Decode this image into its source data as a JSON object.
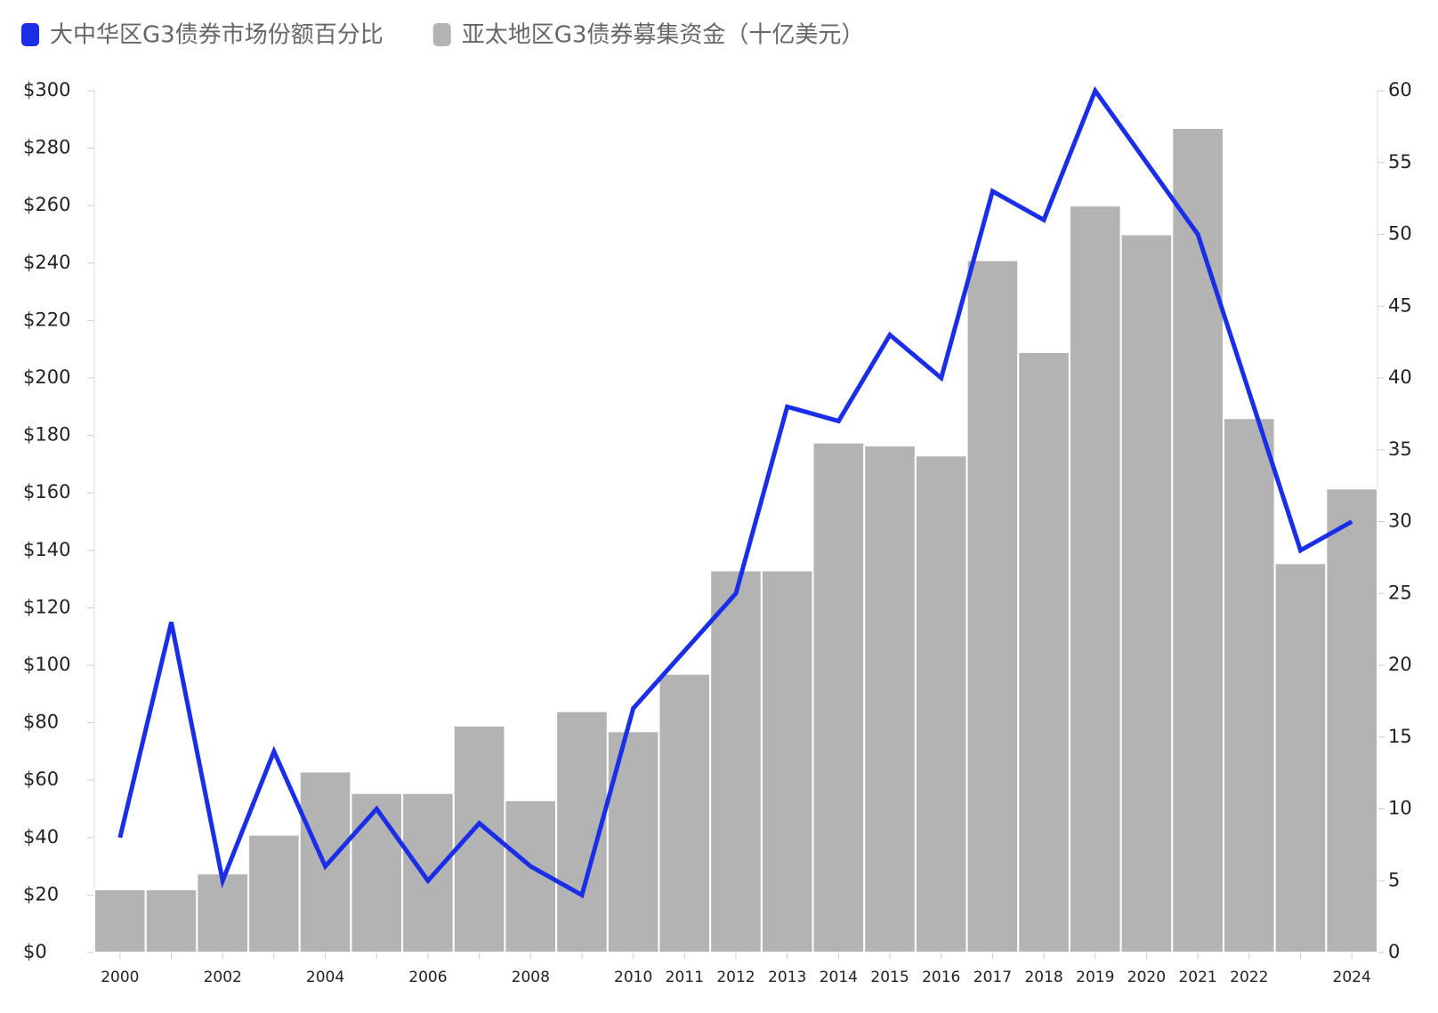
{
  "chart_data": {
    "type": "combo",
    "categories": [
      2000,
      null,
      2002,
      null,
      2004,
      null,
      2006,
      null,
      2008,
      null,
      2010,
      2011,
      2012,
      2013,
      2014,
      2015,
      2016,
      2017,
      2018,
      2019,
      2020,
      2021,
      2022,
      null,
      2024
    ],
    "series": [
      {
        "name": "大中华区G3债券市场份额百分比",
        "type": "line",
        "axis": "y2",
        "color": "#1a2ee8",
        "values": [
          8,
          23,
          5,
          14,
          6,
          10,
          5,
          9,
          6,
          4,
          17,
          21,
          25,
          38,
          37,
          43,
          40,
          53,
          51,
          60,
          55,
          50,
          39,
          28,
          30
        ]
      },
      {
        "name": "亚太地区G3债券募集资金（十亿美元）",
        "type": "bar",
        "color": "#b3b3b3",
        "values": [
          22,
          22,
          27.5,
          41,
          63,
          55.5,
          55.5,
          79,
          53,
          84,
          77,
          97,
          133,
          133,
          177.5,
          176.5,
          173,
          241,
          209,
          260,
          250,
          287,
          186,
          135.5,
          161.5
        ]
      }
    ],
    "ylim": [
      0,
      300
    ],
    "yticks": [
      {
        "value": 0,
        "label": "$0"
      },
      {
        "value": 20,
        "label": "$20"
      },
      {
        "value": 40,
        "label": "$40"
      },
      {
        "value": 60,
        "label": "$60"
      },
      {
        "value": 80,
        "label": "$80"
      },
      {
        "value": 100,
        "label": "$100"
      },
      {
        "value": 120,
        "label": "$120"
      },
      {
        "value": 140,
        "label": "$140"
      },
      {
        "value": 160,
        "label": "$160"
      },
      {
        "value": 180,
        "label": "$180"
      },
      {
        "value": 200,
        "label": "$200"
      },
      {
        "value": 220,
        "label": "$220"
      },
      {
        "value": 240,
        "label": "$240"
      },
      {
        "value": 260,
        "label": "$260"
      },
      {
        "value": 280,
        "label": "$280"
      },
      {
        "value": 300,
        "label": "$300"
      }
    ],
    "y2lim": [
      0,
      60
    ],
    "y2ticks": [
      0,
      5,
      10,
      15,
      20,
      25,
      30,
      35,
      40,
      45,
      50,
      55,
      60
    ]
  }
}
